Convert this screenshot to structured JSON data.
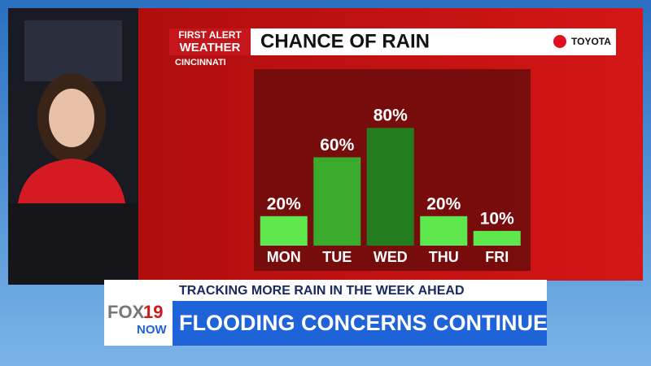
{
  "chart_data": {
    "type": "bar",
    "title": "CHANCE OF RAIN",
    "categories": [
      "MON",
      "TUE",
      "WED",
      "THU",
      "FRI"
    ],
    "values": [
      20,
      60,
      80,
      20,
      10
    ],
    "value_labels": [
      "20%",
      "60%",
      "80%",
      "20%",
      "10%"
    ],
    "colors": [
      "#5ee84e",
      "#3aab2c",
      "#237d1f",
      "#5ee84e",
      "#5ee84e"
    ]
  },
  "branding": {
    "logo_line1": "FIRST ALERT",
    "logo_line2": "WEATHER",
    "location": "CINCINNATI",
    "sponsor": "TOYOTA",
    "station": [
      "FOX",
      "19",
      "NOW"
    ]
  },
  "lower_third": {
    "kicker": "TRACKING MORE RAIN IN THE WEEK AHEAD",
    "headline": "FLOODING CONCERNS CONTINUE"
  }
}
